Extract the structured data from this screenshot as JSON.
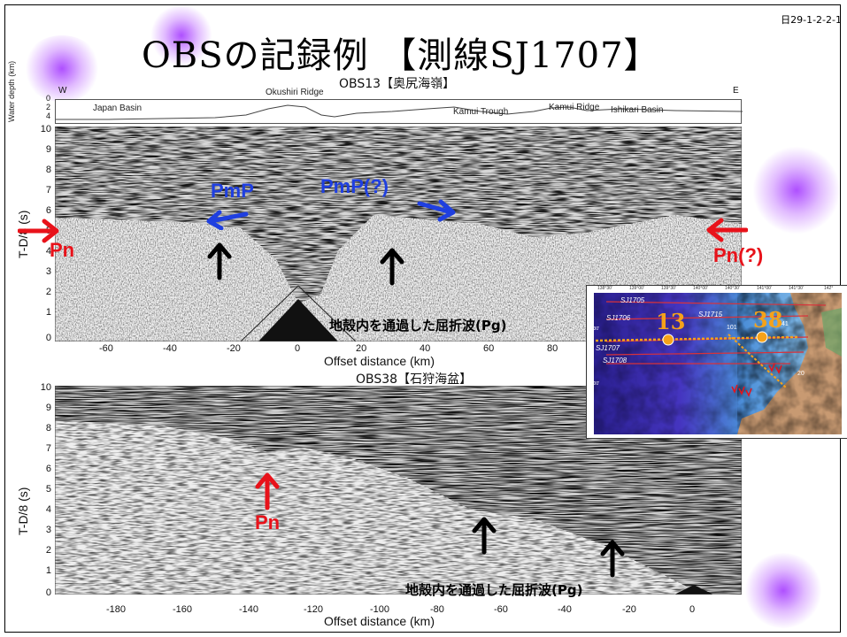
{
  "slide": {
    "id_label": "日29-1-2-2-1",
    "title": "OBSの記録例 【測線SJ1707】"
  },
  "bathymetry": {
    "west_label": "W",
    "east_label": "E",
    "depth_axis_label": "Water depth (km)",
    "depth_ticks": [
      "0",
      "2",
      "4"
    ],
    "features": {
      "japan_basin": "Japan Basin",
      "okushiri_ridge": "Okushiri Ridge",
      "kamui_trough": "Kamui Trough",
      "kamui_ridge": "Kamui Ridge",
      "ishikari_basin": "Ishikari Basin"
    }
  },
  "section1": {
    "title": "OBS13【奥尻海嶺】",
    "y_label": "T-D/8 (s)",
    "y_ticks": [
      "10",
      "9",
      "8",
      "7",
      "6",
      "5",
      "4",
      "3",
      "2",
      "1",
      "0"
    ],
    "x_ticks": [
      "-60",
      "-40",
      "-20",
      "0",
      "20",
      "40",
      "60",
      "80"
    ],
    "x_label": "Offset distance (km)",
    "annotations": {
      "pn_left": "Pn",
      "pn_right": "Pn(?)",
      "pmp_left": "PmP",
      "pmp_right": "PmP(?)",
      "pg": "地殻内を通過した屈折波(Pg)"
    }
  },
  "section2": {
    "title": "OBS38【石狩海盆】",
    "y_label": "T-D/8 (s)",
    "y_ticks": [
      "10",
      "9",
      "8",
      "7",
      "6",
      "5",
      "4",
      "3",
      "2",
      "1",
      "0"
    ],
    "x_ticks": [
      "-180",
      "-160",
      "-140",
      "-120",
      "-100",
      "-80",
      "-60",
      "-40",
      "-20",
      "0"
    ],
    "x_label": "Offset distance (km)",
    "annotations": {
      "pn": "Pn",
      "pg": "地殻内を通過した屈折波(Pg)"
    }
  },
  "inset_map": {
    "obs_labels": [
      "13",
      "38"
    ],
    "line_labels": [
      "SJ1705",
      "SJ1706",
      "SJ1707",
      "SJ1708",
      "SJ1715"
    ],
    "station_numbers": [
      "101",
      "41",
      "20"
    ],
    "lon_ticks": [
      "138°30'",
      "139°00'",
      "139°30'",
      "140°00'",
      "140°30'",
      "141°00'",
      "141°30'",
      "142°"
    ],
    "lat_ticks": [
      "43°30'",
      "43°00'"
    ],
    "colors": {
      "deep_sea": "#3b2fb0",
      "shelf": "#74b7e8",
      "land": "#c89a72",
      "obs_marker": "#f5a21a",
      "track_line": "#d8323a"
    }
  },
  "colors": {
    "red_annotation": "#e8121a",
    "blue_annotation": "#1f3fe0",
    "black_arrow": "#000000"
  }
}
